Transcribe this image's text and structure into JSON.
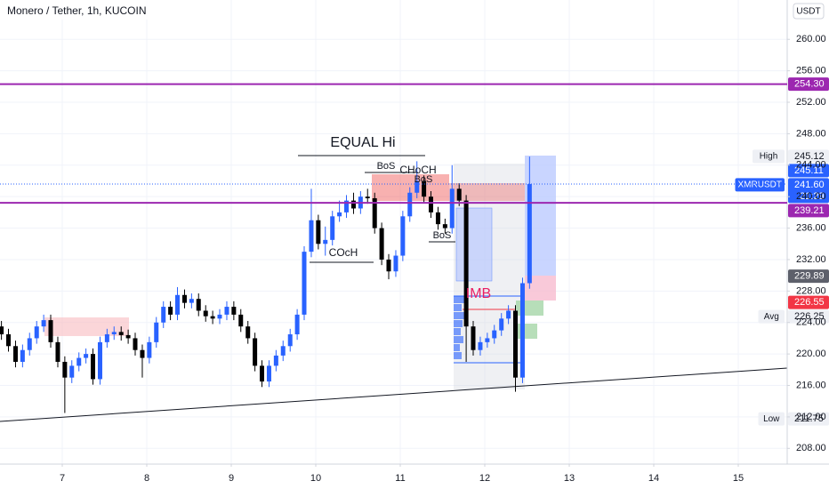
{
  "chart_data": {
    "type": "candlestick",
    "title": "Monero / Tether, 1h, KUCOIN",
    "currency": "USDT",
    "up_color": "#2962ff",
    "down_color": "#000000",
    "grid": true,
    "xlim": [
      6.263,
      15.579
    ],
    "ylim": [
      206,
      265
    ],
    "xticks": [
      7,
      8,
      9,
      10,
      11,
      12,
      13,
      14,
      15
    ],
    "yticks": [
      {
        "value": 208,
        "label": "208.00"
      },
      {
        "value": 212,
        "label": "212.00"
      },
      {
        "value": 216,
        "label": "216.00"
      },
      {
        "value": 220,
        "label": "220.00"
      },
      {
        "value": 224,
        "label": "224.00"
      },
      {
        "value": 228,
        "label": "228.00"
      },
      {
        "value": 232,
        "label": "232.00"
      },
      {
        "value": 236,
        "label": "236.00"
      },
      {
        "value": 240,
        "label": "240.00"
      },
      {
        "value": 244,
        "label": "244.00"
      },
      {
        "value": 248,
        "label": "248.00"
      },
      {
        "value": 252,
        "label": "252.00"
      },
      {
        "value": 256,
        "label": "256.00"
      },
      {
        "value": 260,
        "label": "260.00"
      }
    ],
    "x": [
      6.28,
      6.363,
      6.447,
      6.53,
      6.613,
      6.697,
      6.78,
      6.863,
      6.947,
      7.03,
      7.113,
      7.197,
      7.28,
      7.363,
      7.447,
      7.53,
      7.613,
      7.697,
      7.78,
      7.863,
      7.947,
      8.03,
      8.113,
      8.197,
      8.28,
      8.363,
      8.447,
      8.53,
      8.613,
      8.697,
      8.78,
      8.863,
      8.947,
      9.03,
      9.113,
      9.197,
      9.28,
      9.363,
      9.447,
      9.53,
      9.613,
      9.697,
      9.78,
      9.863,
      9.947,
      10.03,
      10.113,
      10.197,
      10.28,
      10.363,
      10.447,
      10.53,
      10.613,
      10.697,
      10.78,
      10.863,
      10.947,
      11.03,
      11.113,
      11.197,
      11.28,
      11.363,
      11.447,
      11.53,
      11.613,
      11.697,
      11.78,
      11.863,
      11.947,
      12.03,
      12.113,
      12.197,
      12.28,
      12.363,
      12.447,
      12.53
    ],
    "open": [
      223.5,
      222.5,
      221.0,
      219.0,
      220.5,
      222.0,
      223.5,
      224.3,
      221.5,
      219.0,
      217.0,
      218.5,
      219.5,
      220.0,
      216.8,
      221.5,
      222.5,
      222.8,
      222.4,
      222.0,
      220.5,
      219.5,
      221.5,
      224.0,
      226.0,
      225.0,
      227.5,
      226.5,
      227.0,
      225.5,
      224.8,
      224.5,
      225.0,
      226.0,
      225.0,
      223.5,
      222.0,
      218.5,
      216.5,
      218.5,
      219.8,
      221.0,
      222.5,
      225.0,
      233.0,
      237.0,
      234.0,
      234.5,
      237.5,
      238.0,
      239.5,
      238.5,
      240.0,
      239.8,
      236.0,
      232.0,
      230.5,
      232.5,
      237.5,
      240.5,
      242.0,
      240.0,
      238.0,
      236.5,
      236.0,
      241.0,
      239.5,
      223.5,
      220.5,
      221.5,
      222.0,
      223.0,
      224.5,
      225.5,
      217.0,
      229.0
    ],
    "high": [
      224.2,
      223.2,
      221.7,
      221.2,
      222.7,
      224.2,
      225.0,
      225.0,
      222.2,
      219.7,
      219.2,
      220.2,
      220.7,
      220.7,
      222.2,
      223.2,
      223.5,
      223.5,
      223.1,
      222.7,
      221.2,
      222.2,
      224.7,
      226.7,
      226.7,
      228.5,
      228.2,
      227.7,
      227.7,
      226.2,
      225.5,
      225.7,
      226.7,
      226.7,
      225.7,
      224.2,
      222.7,
      219.2,
      219.2,
      220.5,
      221.7,
      223.2,
      225.7,
      233.7,
      241.0,
      237.7,
      236.2,
      238.2,
      239.5,
      240.2,
      240.5,
      240.7,
      241.0,
      240.5,
      236.7,
      232.7,
      233.2,
      238.2,
      241.2,
      244.5,
      242.7,
      240.7,
      238.7,
      237.2,
      244.0,
      241.7,
      240.2,
      224.2,
      222.2,
      222.7,
      223.7,
      225.2,
      226.2,
      226.2,
      229.7,
      245.1
    ],
    "low": [
      221.8,
      220.3,
      218.3,
      218.3,
      219.8,
      221.3,
      222.8,
      220.8,
      218.3,
      212.5,
      216.3,
      217.8,
      218.8,
      216.1,
      216.1,
      220.8,
      221.8,
      221.7,
      221.3,
      219.8,
      217.0,
      218.8,
      220.8,
      223.3,
      224.3,
      224.3,
      225.8,
      225.8,
      224.8,
      224.1,
      223.8,
      223.8,
      224.3,
      224.3,
      222.8,
      221.3,
      217.8,
      215.8,
      215.8,
      217.8,
      219.1,
      220.3,
      221.8,
      224.3,
      232.3,
      233.3,
      232.5,
      233.8,
      236.8,
      237.3,
      237.8,
      237.8,
      239.1,
      235.3,
      231.3,
      229.5,
      229.8,
      231.8,
      236.8,
      239.8,
      239.3,
      237.3,
      235.8,
      235.3,
      235.3,
      238.8,
      219.0,
      219.8,
      219.8,
      220.8,
      221.3,
      222.3,
      223.8,
      215.2,
      216.3,
      228.3
    ],
    "close": [
      222.5,
      221.0,
      219.0,
      220.5,
      222.0,
      223.5,
      224.3,
      221.5,
      219.0,
      217.0,
      218.5,
      219.5,
      220.0,
      216.8,
      221.5,
      222.5,
      222.8,
      222.4,
      222.0,
      220.5,
      219.5,
      221.5,
      224.0,
      226.0,
      225.0,
      227.5,
      226.5,
      227.0,
      225.5,
      224.8,
      224.5,
      225.0,
      226.0,
      225.0,
      223.5,
      222.0,
      218.5,
      216.5,
      218.5,
      219.8,
      221.0,
      222.5,
      225.0,
      233.0,
      237.0,
      234.0,
      234.5,
      237.5,
      238.0,
      239.5,
      238.5,
      240.0,
      239.8,
      236.0,
      232.0,
      230.5,
      232.5,
      237.5,
      240.5,
      242.0,
      240.0,
      238.0,
      236.5,
      236.0,
      241.0,
      239.5,
      223.5,
      220.5,
      221.5,
      222.0,
      223.0,
      224.5,
      225.5,
      217.0,
      229.0,
      241.6
    ],
    "annotations": [
      "EQUAL Hi",
      "BoS",
      "CHoCH",
      "BoS",
      "COcH",
      "BoS",
      "IMB"
    ],
    "price_lines": [
      {
        "value": 254.3,
        "color": "#9c27b0"
      },
      {
        "value": 239.21,
        "color": "#9c27b0"
      }
    ],
    "price_labels": [
      {
        "value": 254.3,
        "label": "254.30",
        "color": "#9c27b0",
        "text_color": "#ffffff"
      },
      {
        "name": "High",
        "value": 245.12,
        "label": "245.12",
        "color": "#eef0f5",
        "text_color": "#131722"
      },
      {
        "value": 245.11,
        "label": "245.11",
        "color": "#2962ff",
        "text_color": "#ffffff"
      },
      {
        "name": "XMRUSDT",
        "value": 241.6,
        "label": "241.60",
        "countdown": "21:29",
        "color": "#2962ff",
        "text_color": "#ffffff"
      },
      {
        "value": 239.21,
        "label": "239.21",
        "color": "#9c27b0",
        "text_color": "#ffffff"
      },
      {
        "value": 229.89,
        "label": "229.89",
        "color": "#5d606b",
        "text_color": "#ffffff"
      },
      {
        "value": 226.55,
        "label": "226.55",
        "color": "#f23645",
        "text_color": "#ffffff"
      },
      {
        "name": "Avg",
        "value": 226.25,
        "label": "226.25",
        "color": "#eef0f5",
        "text_color": "#131722"
      },
      {
        "name": "Low",
        "value": 211.75,
        "label": "211.75",
        "color": "#eef0f5",
        "text_color": "#131722"
      }
    ]
  }
}
